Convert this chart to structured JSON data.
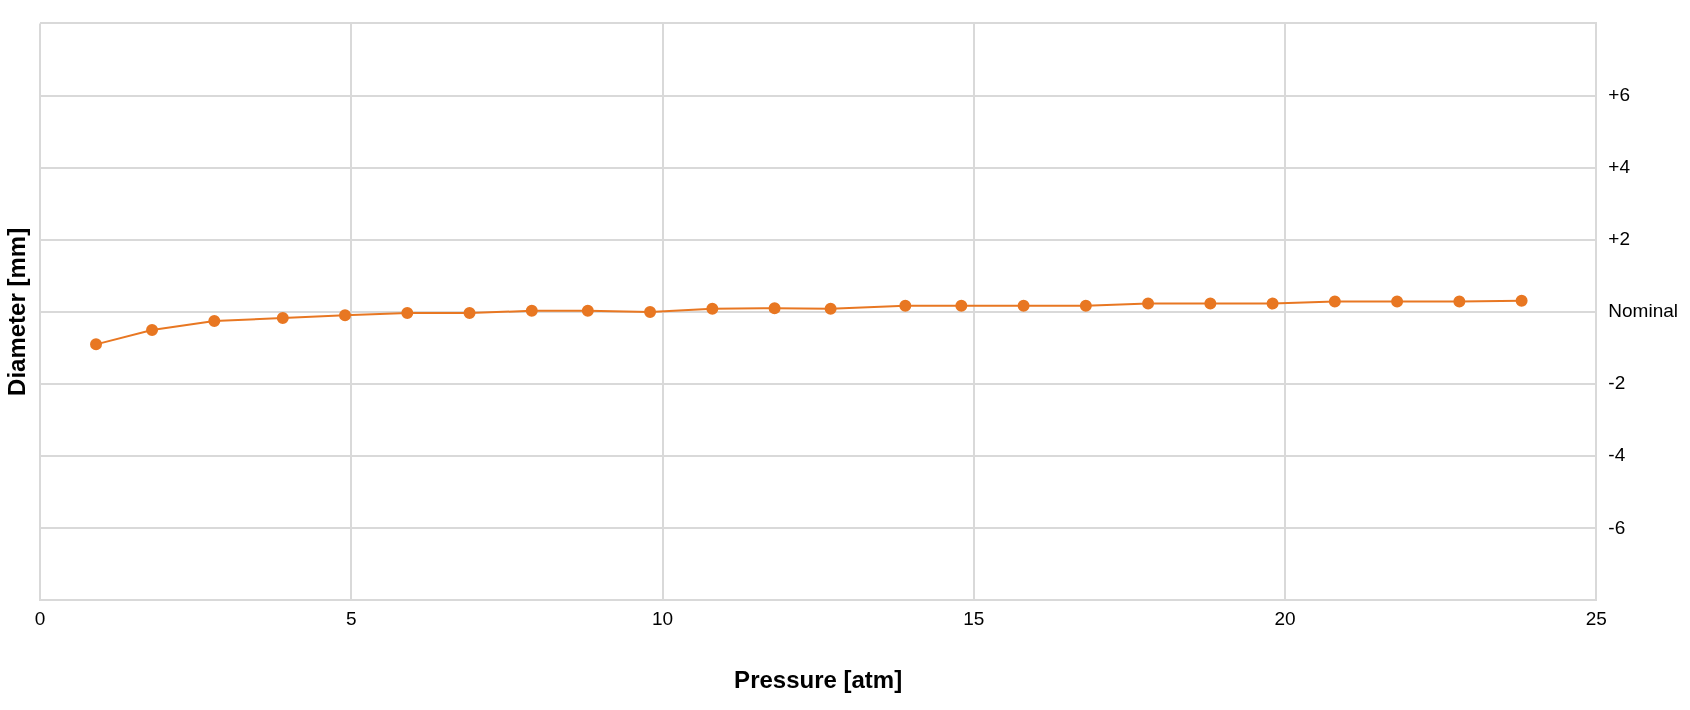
{
  "chart_data": {
    "type": "line",
    "xlabel": "Pressure [atm]",
    "ylabel": "Diameter [mm]",
    "x": [
      0.9,
      1.8,
      2.8,
      3.9,
      4.9,
      5.9,
      6.9,
      7.9,
      8.8,
      9.8,
      10.8,
      11.8,
      12.7,
      13.9,
      14.8,
      15.8,
      16.8,
      17.8,
      18.8,
      19.8,
      20.8,
      21.8,
      22.8,
      23.8
    ],
    "series": [
      {
        "color": "#e87722",
        "values": [
          -0.9,
          -0.5,
          -0.25,
          -0.17,
          -0.09,
          -0.03,
          -0.03,
          0.03,
          0.03,
          0.0,
          0.09,
          0.1,
          0.09,
          0.17,
          0.17,
          0.17,
          0.17,
          0.23,
          0.23,
          0.23,
          0.29,
          0.29,
          0.29,
          0.31
        ]
      }
    ],
    "xlim": [
      0,
      25
    ],
    "xticks": [
      0,
      5,
      10,
      15,
      20,
      25
    ],
    "ylim": [
      -8,
      8
    ],
    "yticks": [
      {
        "value": -8,
        "label": null
      },
      {
        "value": -6,
        "label": "-6"
      },
      {
        "value": -4,
        "label": "-4"
      },
      {
        "value": -2,
        "label": "-2"
      },
      {
        "value": 0,
        "label": "Nominal"
      },
      {
        "value": 2,
        "label": "+2"
      },
      {
        "value": 4,
        "label": "+4"
      },
      {
        "value": 6,
        "label": "+6"
      },
      {
        "value": 8,
        "label": null
      }
    ],
    "grid": true,
    "marker": "circle",
    "line_style": "solid"
  }
}
